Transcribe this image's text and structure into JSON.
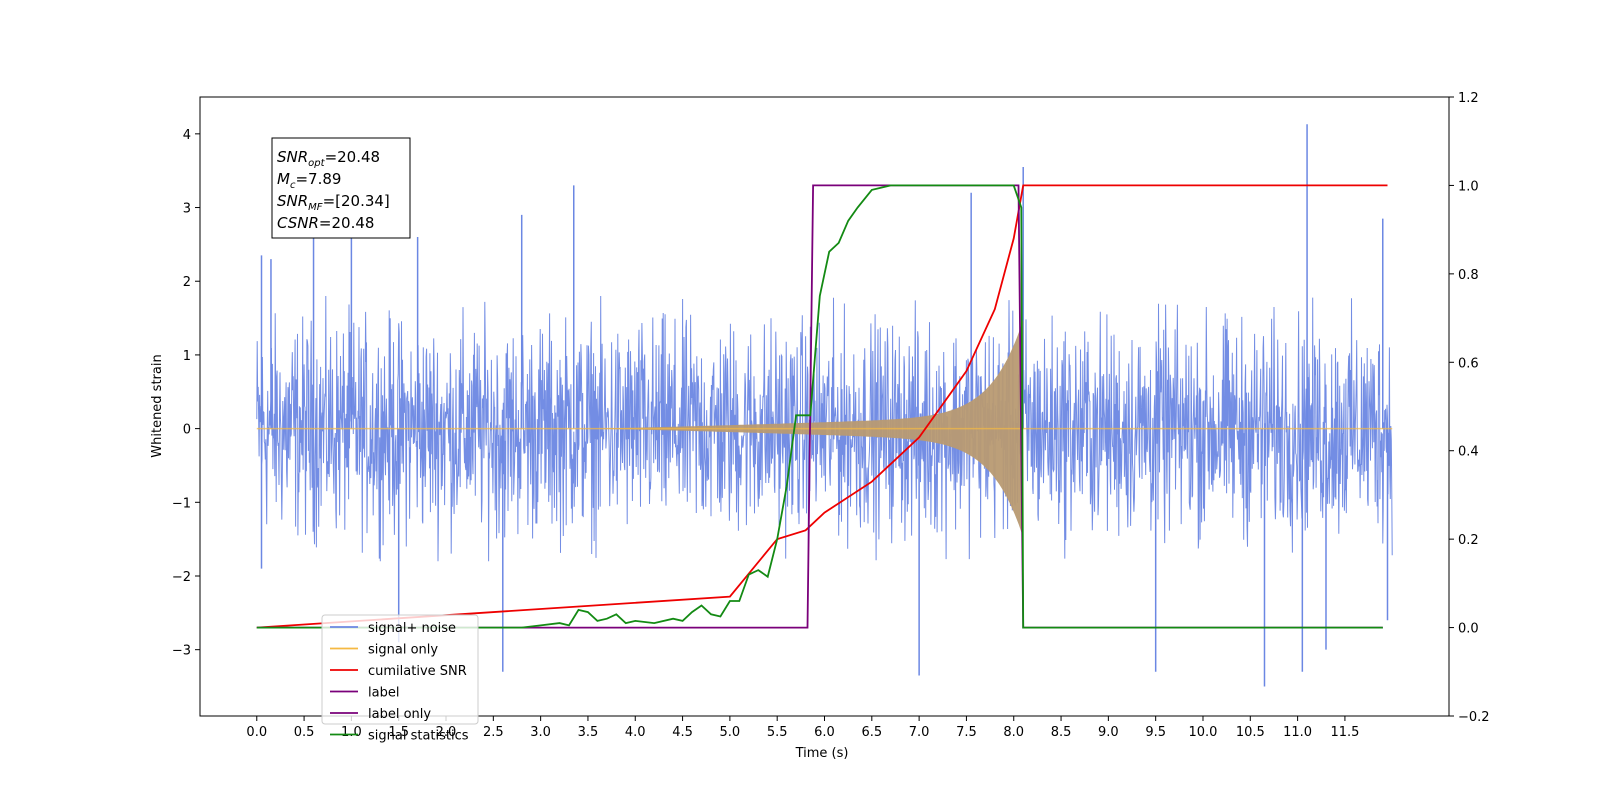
{
  "chart_data": {
    "type": "line",
    "xlabel": "Time (s)",
    "ylabel": "Whitened strain",
    "xlim": [
      -0.6,
      12.6
    ],
    "ylim_left": [
      -3.9,
      4.5
    ],
    "ylim_right": [
      -0.2,
      1.2
    ],
    "x_ticks": [
      0.0,
      0.5,
      1.0,
      1.5,
      2.0,
      2.5,
      3.0,
      3.5,
      4.0,
      4.5,
      5.0,
      5.5,
      6.0,
      6.5,
      7.0,
      7.5,
      8.0,
      8.5,
      9.0,
      9.5,
      10.0,
      10.5,
      11.0,
      11.5
    ],
    "x_tick_labels": [
      "0.0",
      "0.5",
      "1.0",
      "1.5",
      "2.0",
      "2.5",
      "3.0",
      "3.5",
      "4.0",
      "4.5",
      "5.0",
      "5.5",
      "6.0",
      "6.5",
      "7.0",
      "7.5",
      "8.0",
      "8.5",
      "9.0",
      "9.5",
      "10.0",
      "10.5",
      "11.0",
      "11.5"
    ],
    "y_left_ticks": [
      -3,
      -2,
      -1,
      0,
      1,
      2,
      3,
      4
    ],
    "y_left_tick_labels": [
      "−3",
      "−2",
      "−1",
      "0",
      "1",
      "2",
      "3",
      "4"
    ],
    "y_right_ticks": [
      -0.2,
      0.0,
      0.2,
      0.4,
      0.6,
      0.8,
      1.0,
      1.2
    ],
    "y_right_tick_labels": [
      "−0.2",
      "0.0",
      "0.2",
      "0.4",
      "0.6",
      "0.8",
      "1.0",
      "1.2"
    ],
    "grid": false,
    "legend_placement": "lower-left",
    "signal_noise": {
      "x_range": [
        0.0,
        12.0
      ],
      "envelope": [
        1.8,
        1.5
      ],
      "spikes": [
        {
          "x": 0.05,
          "y": 2.35
        },
        {
          "x": 0.15,
          "y": 2.3
        },
        {
          "x": 0.6,
          "y": 2.8
        },
        {
          "x": 1.0,
          "y": 2.7
        },
        {
          "x": 1.7,
          "y": 2.6
        },
        {
          "x": 2.8,
          "y": 2.9
        },
        {
          "x": 3.35,
          "y": 3.3
        },
        {
          "x": 7.55,
          "y": 3.2
        },
        {
          "x": 8.1,
          "y": 3.55
        },
        {
          "x": 11.1,
          "y": 4.13
        },
        {
          "x": 11.9,
          "y": 2.85
        },
        {
          "x": 0.05,
          "y": -1.9
        },
        {
          "x": 1.5,
          "y": -2.9
        },
        {
          "x": 2.6,
          "y": -3.3
        },
        {
          "x": 7.0,
          "y": -3.35
        },
        {
          "x": 9.5,
          "y": -3.3
        },
        {
          "x": 10.65,
          "y": -3.5
        },
        {
          "x": 11.05,
          "y": -3.3
        },
        {
          "x": 11.3,
          "y": -3.0
        },
        {
          "x": 11.95,
          "y": -2.6
        }
      ]
    },
    "series": [
      {
        "name": "signal+ noise",
        "color": "#6b87e3"
      },
      {
        "name": "signal only",
        "color": "#f5b942"
      },
      {
        "name": "cumilative SNR",
        "color": "#ee0000",
        "points": [
          [
            0.0,
            0.0
          ],
          [
            5.0,
            0.07
          ],
          [
            5.5,
            0.2
          ],
          [
            5.8,
            0.22
          ],
          [
            6.0,
            0.26
          ],
          [
            6.5,
            0.33
          ],
          [
            7.0,
            0.43
          ],
          [
            7.5,
            0.58
          ],
          [
            7.8,
            0.72
          ],
          [
            8.0,
            0.88
          ],
          [
            8.1,
            1.0
          ],
          [
            11.95,
            1.0
          ]
        ]
      },
      {
        "name": "label",
        "color": "#7a007a",
        "points": [
          [
            0.0,
            0.0
          ],
          [
            5.82,
            0.0
          ],
          [
            5.88,
            1.0
          ],
          [
            8.05,
            1.0
          ],
          [
            8.1,
            0.0
          ],
          [
            11.9,
            0.0
          ]
        ]
      },
      {
        "name": "label only",
        "color": "#7a007a"
      },
      {
        "name": "signal statistics",
        "color": "#138a13",
        "points": [
          [
            0.0,
            0.0
          ],
          [
            2.8,
            0.0
          ],
          [
            3.0,
            0.005
          ],
          [
            3.2,
            0.01
          ],
          [
            3.3,
            0.005
          ],
          [
            3.4,
            0.04
          ],
          [
            3.5,
            0.035
          ],
          [
            3.6,
            0.015
          ],
          [
            3.7,
            0.02
          ],
          [
            3.8,
            0.03
          ],
          [
            3.9,
            0.01
          ],
          [
            4.0,
            0.015
          ],
          [
            4.2,
            0.01
          ],
          [
            4.4,
            0.02
          ],
          [
            4.5,
            0.015
          ],
          [
            4.6,
            0.035
          ],
          [
            4.7,
            0.05
          ],
          [
            4.8,
            0.03
          ],
          [
            4.9,
            0.025
          ],
          [
            5.0,
            0.06
          ],
          [
            5.1,
            0.06
          ],
          [
            5.2,
            0.12
          ],
          [
            5.3,
            0.13
          ],
          [
            5.4,
            0.115
          ],
          [
            5.5,
            0.2
          ],
          [
            5.6,
            0.32
          ],
          [
            5.7,
            0.48
          ],
          [
            5.85,
            0.48
          ],
          [
            5.95,
            0.75
          ],
          [
            6.05,
            0.85
          ],
          [
            6.15,
            0.87
          ],
          [
            6.25,
            0.92
          ],
          [
            6.35,
            0.95
          ],
          [
            6.5,
            0.99
          ],
          [
            6.7,
            1.0
          ],
          [
            8.0,
            1.0
          ],
          [
            8.08,
            0.95
          ],
          [
            8.1,
            0.0
          ],
          [
            11.9,
            0.0
          ]
        ]
      }
    ],
    "signal_only": {
      "chirp_start": 3.5,
      "merger": 8.1,
      "peak_amplitude": 1.3
    }
  },
  "stats_box": {
    "lines": [
      {
        "sym": "SNR",
        "sub": "opt",
        "value": "=20.48"
      },
      {
        "sym": "M",
        "sub": "c",
        "value": "=7.89"
      },
      {
        "sym": "SNR",
        "sub": "MF",
        "value": "=[20.34]"
      },
      {
        "sym": "CSNR",
        "sub": "",
        "value": "=20.48"
      }
    ]
  }
}
